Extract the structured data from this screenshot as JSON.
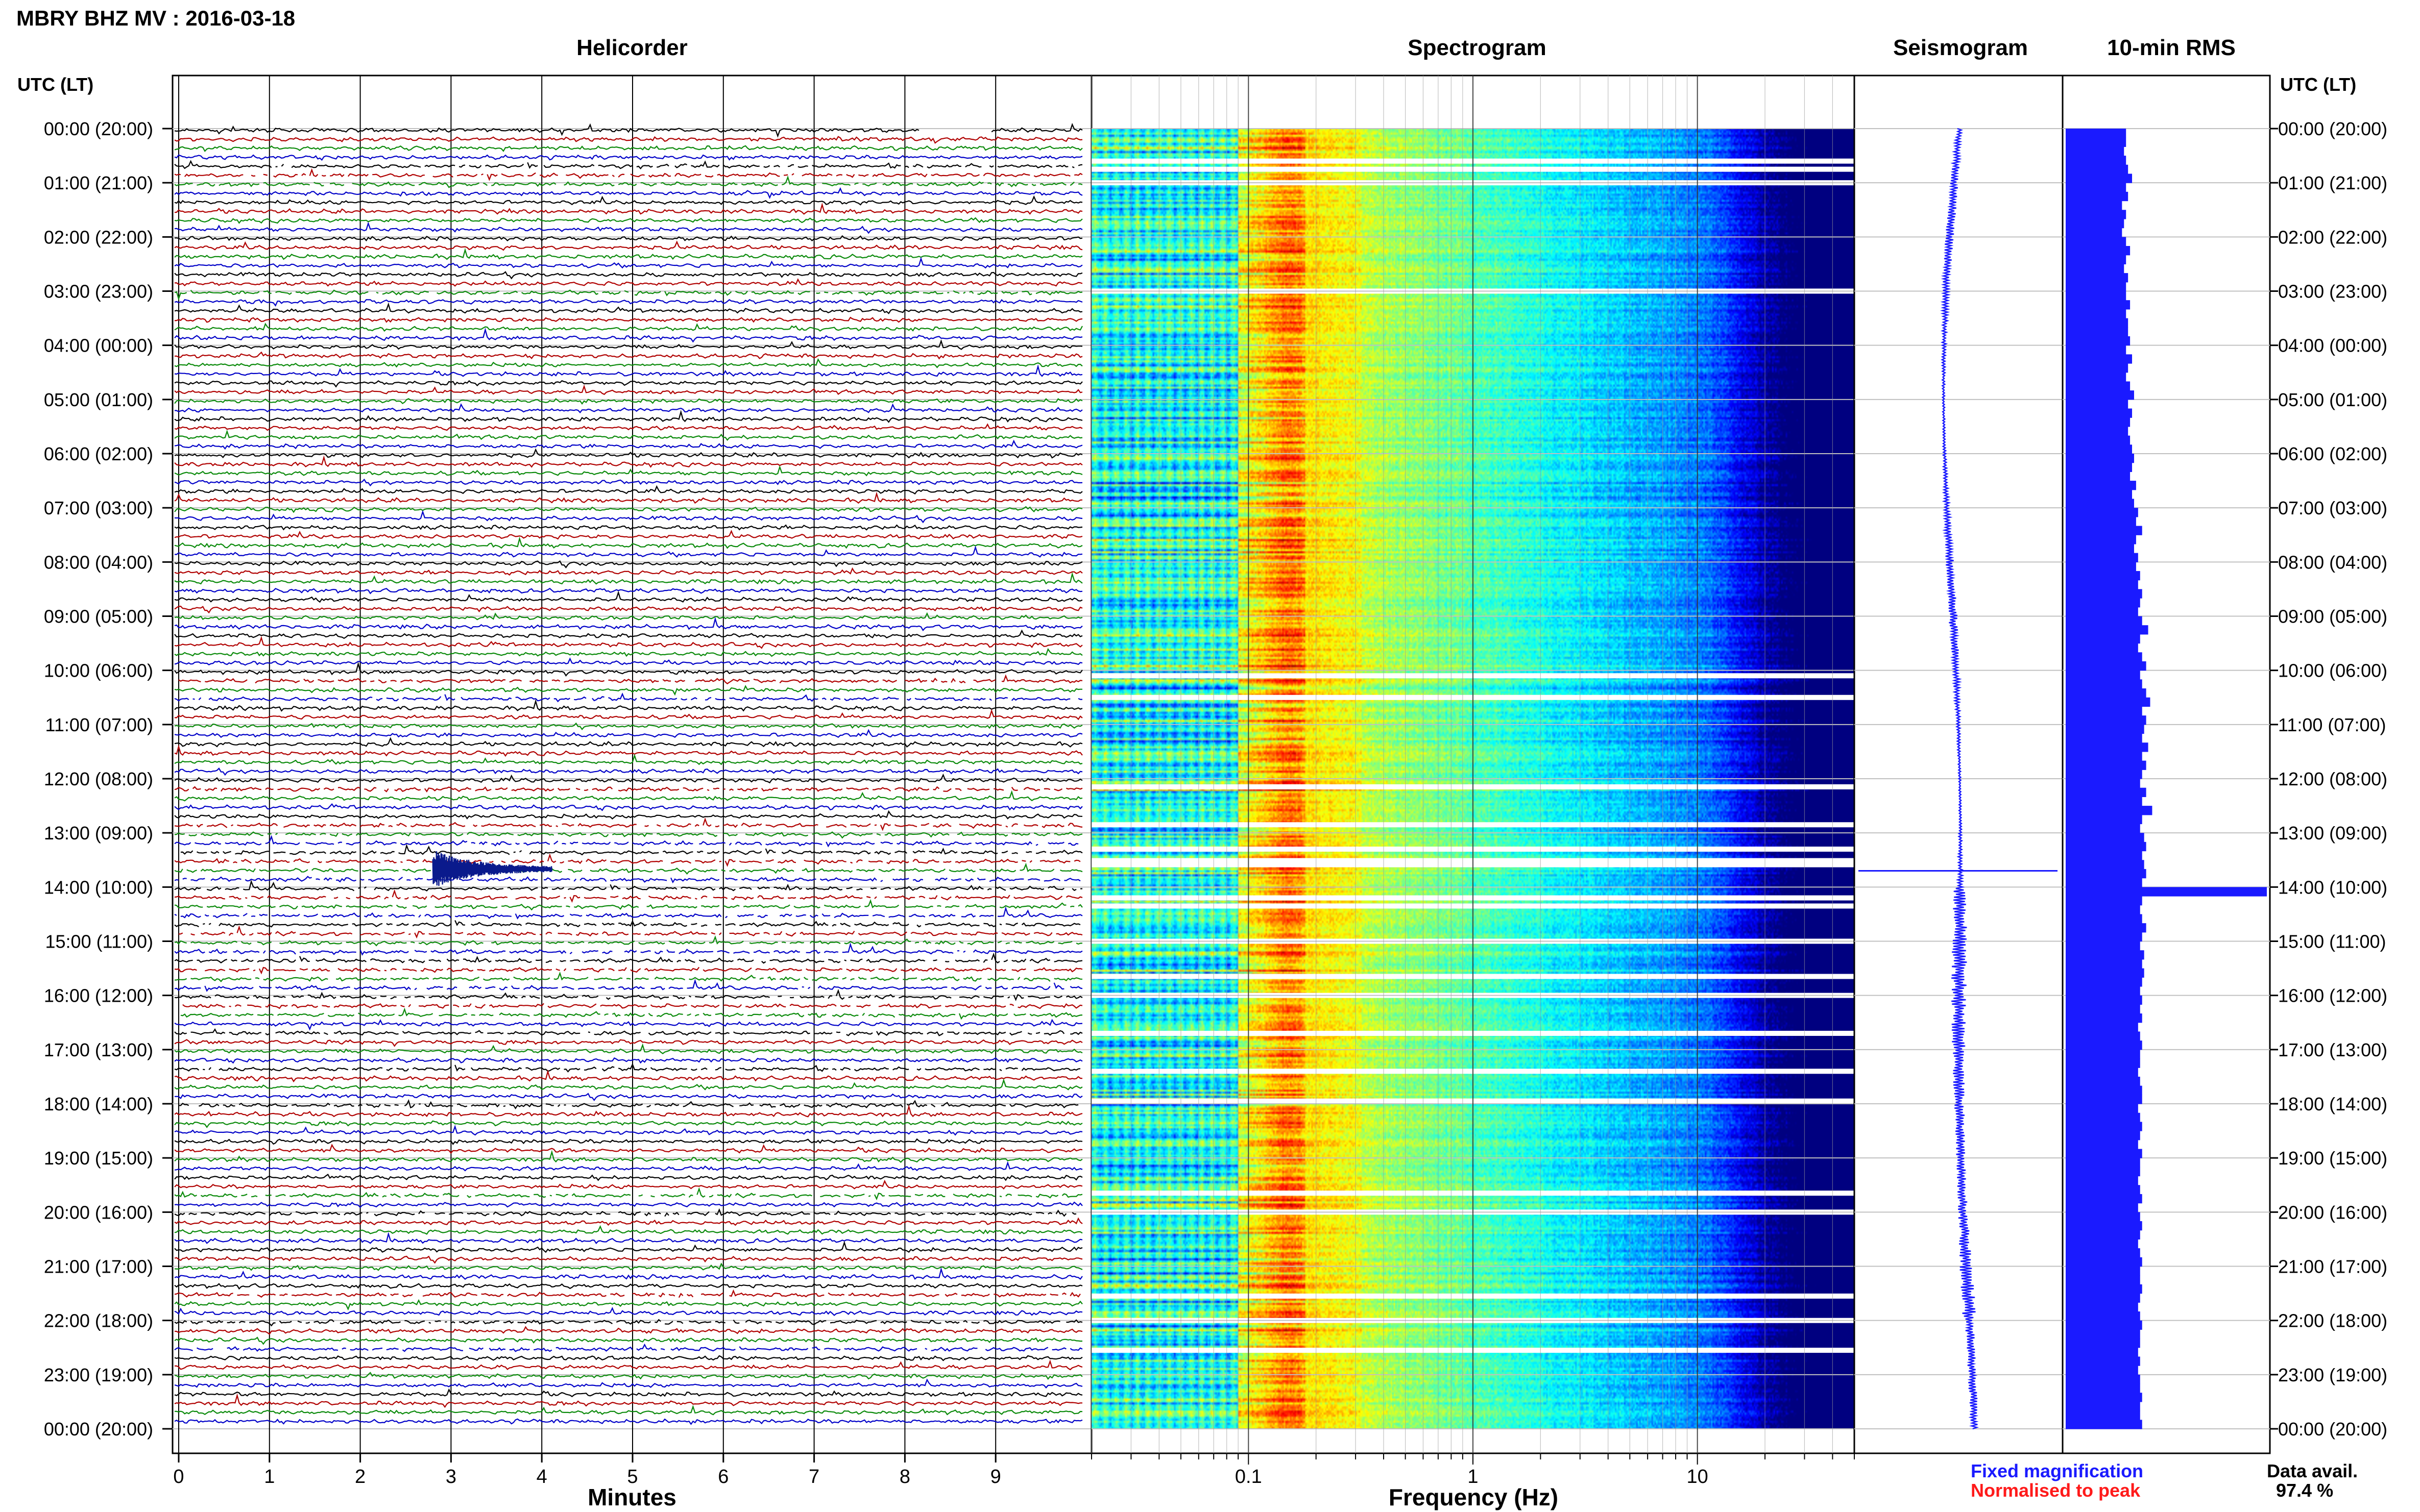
{
  "header": {
    "title": "MBRY BHZ MV : 2016-03-18",
    "left_axis_label": "UTC (LT)",
    "right_axis_label": "UTC (LT)"
  },
  "panels": {
    "helicorder": {
      "title": "Helicorder",
      "xlabel": "Minutes",
      "x_ticks": [
        "0",
        "1",
        "2",
        "3",
        "4",
        "5",
        "6",
        "7",
        "8",
        "9"
      ],
      "trace_colors": [
        "#000000",
        "#b00000",
        "#0a8a0a",
        "#0000c8"
      ]
    },
    "spectrogram": {
      "title": "Spectrogram",
      "xlabel": "Frequency (Hz)",
      "x_ticks": [
        "0.1",
        "1",
        "10"
      ]
    },
    "seismogram": {
      "title": "Seismogram"
    },
    "rms": {
      "title": "10-min RMS"
    }
  },
  "time_labels": [
    "00:00 (20:00)",
    "01:00 (21:00)",
    "02:00 (22:00)",
    "03:00 (23:00)",
    "04:00 (00:00)",
    "05:00 (01:00)",
    "06:00 (02:00)",
    "07:00 (03:00)",
    "08:00 (04:00)",
    "09:00 (05:00)",
    "10:00 (06:00)",
    "11:00 (07:00)",
    "12:00 (08:00)",
    "13:00 (09:00)",
    "14:00 (10:00)",
    "15:00 (11:00)",
    "16:00 (12:00)",
    "17:00 (13:00)",
    "18:00 (14:00)",
    "19:00 (15:00)",
    "20:00 (16:00)",
    "21:00 (17:00)",
    "22:00 (18:00)",
    "23:00 (19:00)",
    "00:00 (20:00)"
  ],
  "legend": {
    "fixed": "Fixed magnification",
    "fixed_color": "#1a1aff",
    "normalised": "Normalised to peak",
    "normalised_color": "#ff1a1a"
  },
  "availability": {
    "label": "Data avail.",
    "value": "97.4 %"
  },
  "chart_data": {
    "type": "heatmap",
    "title": "MBRY BHZ MV : 2016-03-18",
    "y_axis": "UTC (LT)",
    "hours_utc": [
      0,
      24
    ],
    "helicorder_minutes_range": [
      0,
      10
    ],
    "spectrogram_freq_hz_range": [
      0.02,
      50
    ],
    "spectrogram_log_x": true,
    "event_time_utc": "13:42",
    "event_minute": 2.8,
    "gap_rows_utc_hours": [
      0.6,
      0.75,
      1.0,
      3.0,
      10.1,
      10.5,
      12.15,
      12.85,
      13.3,
      14.2,
      14.35,
      15.0,
      15.65,
      16.0,
      16.7,
      17.4,
      17.95,
      19.65,
      20.0,
      21.55,
      22.0,
      22.55
    ],
    "rms_series": {
      "name": "10-min RMS",
      "values": [
        0.3,
        0.3,
        0.29,
        0.3,
        0.31,
        0.33,
        0.3,
        0.31,
        0.28,
        0.3,
        0.29,
        0.28,
        0.3,
        0.32,
        0.3,
        0.29,
        0.31,
        0.3,
        0.3,
        0.32,
        0.3,
        0.31,
        0.31,
        0.32,
        0.3,
        0.33,
        0.31,
        0.3,
        0.32,
        0.34,
        0.31,
        0.33,
        0.32,
        0.31,
        0.32,
        0.33,
        0.34,
        0.33,
        0.32,
        0.35,
        0.33,
        0.34,
        0.36,
        0.35,
        0.38,
        0.35,
        0.34,
        0.36,
        0.35,
        0.37,
        0.36,
        0.38,
        0.37,
        0.36,
        0.38,
        0.41,
        0.37,
        0.36,
        0.38,
        0.4,
        0.37,
        0.38,
        0.4,
        0.42,
        0.38,
        0.4,
        0.39,
        0.38,
        0.41,
        0.38,
        0.4,
        0.38,
        0.37,
        0.4,
        0.38,
        0.43,
        0.38,
        0.37,
        0.39,
        0.4,
        0.38,
        0.39,
        0.4,
        0.38,
        1.0,
        0.38,
        0.37,
        0.38,
        0.4,
        0.38,
        0.37,
        0.39,
        0.38,
        0.39,
        0.38,
        0.37,
        0.38,
        0.37,
        0.38,
        0.36,
        0.37,
        0.38,
        0.37,
        0.37,
        0.36,
        0.37,
        0.38,
        0.38,
        0.36,
        0.37,
        0.38,
        0.37,
        0.36,
        0.38,
        0.37,
        0.37,
        0.36,
        0.37,
        0.38,
        0.36,
        0.37,
        0.38,
        0.37,
        0.36,
        0.37,
        0.38,
        0.37,
        0.37,
        0.38,
        0.37,
        0.36,
        0.37,
        0.38,
        0.37,
        0.37,
        0.36,
        0.37,
        0.36,
        0.37,
        0.37,
        0.38,
        0.37,
        0.37,
        0.38
      ]
    }
  }
}
